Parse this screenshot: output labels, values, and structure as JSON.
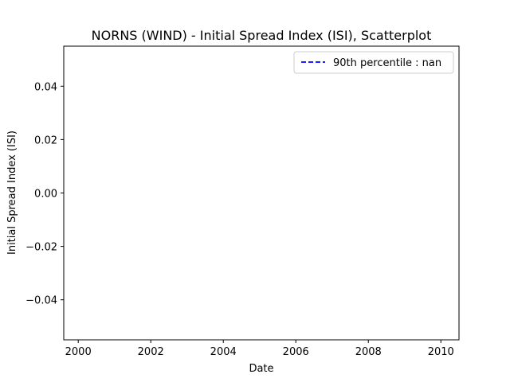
{
  "chart_data": {
    "type": "scatter",
    "title": "NORNS (WIND) - Initial Spread Index (ISI), Scatterplot",
    "xlabel": "Date",
    "ylabel": "Initial Spread Index (ISI)",
    "xlim": [
      1999.6,
      2010.5
    ],
    "ylim": [
      -0.055,
      0.055
    ],
    "x_ticks": [
      "2000",
      "2002",
      "2004",
      "2006",
      "2008",
      "2010"
    ],
    "x_tick_values": [
      2000,
      2002,
      2004,
      2006,
      2008,
      2010
    ],
    "y_ticks": [
      "0.04",
      "0.02",
      "0.00",
      "−0.02",
      "−0.04"
    ],
    "y_tick_values": [
      0.04,
      0.02,
      0.0,
      -0.02,
      -0.04
    ],
    "series": [],
    "grid": false,
    "legend_position": "top-right",
    "legend": [
      {
        "label": "90th percentile : nan",
        "color": "#0000ff",
        "style": "dashed"
      }
    ]
  }
}
